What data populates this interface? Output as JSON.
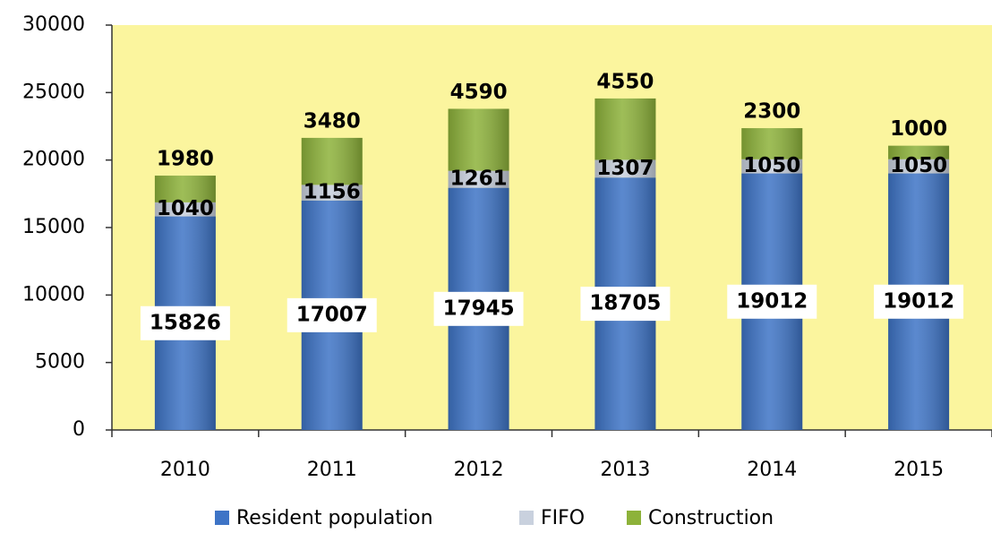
{
  "chart_data": {
    "type": "stacked_bar",
    "categories": [
      "2010",
      "2011",
      "2012",
      "2013",
      "2014",
      "2015"
    ],
    "series": [
      {
        "name": "Resident population",
        "color": "#3e74c6",
        "values": [
          15826,
          17007,
          17945,
          18705,
          19012,
          19012
        ]
      },
      {
        "name": "FIFO",
        "color": "#c9d1de",
        "values": [
          1040,
          1156,
          1261,
          1307,
          1050,
          1050
        ]
      },
      {
        "name": "Construction",
        "color": "#8db23a",
        "values": [
          1980,
          3480,
          4590,
          4550,
          2300,
          1000
        ]
      }
    ],
    "ylim": [
      0,
      30000
    ],
    "yticks": [
      0,
      5000,
      10000,
      15000,
      20000,
      25000,
      30000
    ],
    "plot_background": "#fbf59e",
    "grid": false,
    "legend": "bottom"
  }
}
